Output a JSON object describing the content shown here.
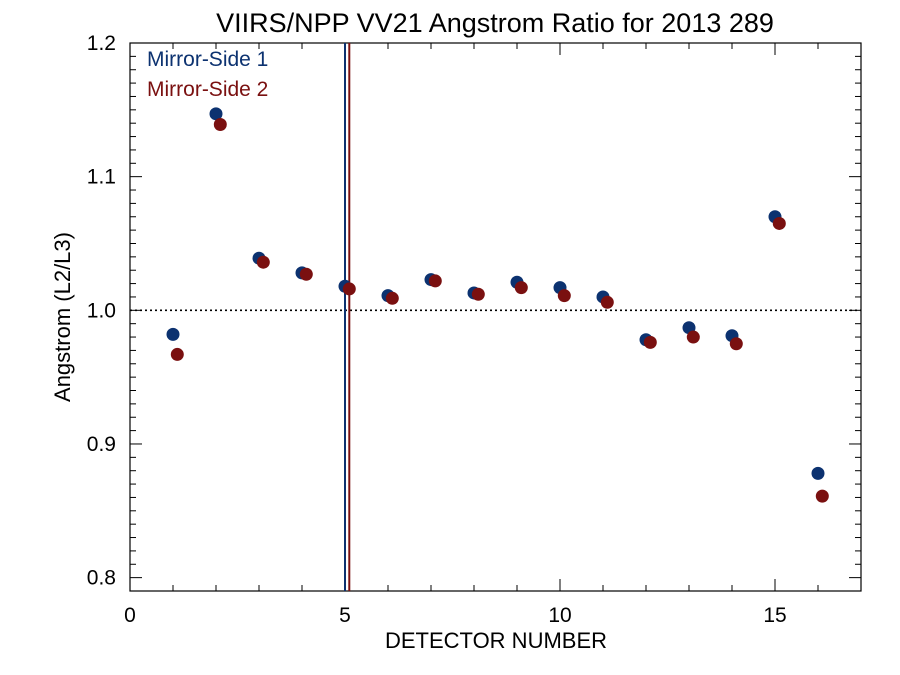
{
  "chart_data": {
    "type": "scatter",
    "title": "VIIRS/NPP VV21 Angstrom Ratio for 2013 289",
    "xlabel": "DETECTOR NUMBER",
    "ylabel": "Angstrom (L2/L3)",
    "xlim": [
      0,
      17
    ],
    "ylim": [
      0.79,
      1.2
    ],
    "xticks": [
      0,
      5,
      10,
      15
    ],
    "yticks": [
      0.8,
      0.9,
      1.0,
      1.1,
      1.2
    ],
    "xtick_labels": [
      "0",
      "5",
      "10",
      "15"
    ],
    "ytick_labels": [
      "0.8",
      "0.9",
      "1.0",
      "1.1",
      "1.2"
    ],
    "reference_line": {
      "y": 1.0,
      "style": "dotted"
    },
    "vertical_lines": [
      {
        "x": 5.0,
        "series": "Mirror-Side 1"
      },
      {
        "x": 5.1,
        "series": "Mirror-Side 2"
      }
    ],
    "legend": {
      "placement": "top-left"
    },
    "series": [
      {
        "name": "Mirror-Side 1",
        "color": "#0c3270",
        "x": [
          1,
          2,
          3,
          4,
          5,
          6,
          7,
          8,
          9,
          10,
          11,
          12,
          13,
          14,
          15,
          16
        ],
        "y": [
          0.982,
          1.147,
          1.039,
          1.028,
          1.018,
          1.011,
          1.023,
          1.013,
          1.021,
          1.017,
          1.01,
          0.978,
          0.987,
          0.981,
          1.07,
          0.878
        ]
      },
      {
        "name": "Mirror-Side 2",
        "color": "#7a1010",
        "x": [
          1.1,
          2.1,
          3.1,
          4.1,
          5.1,
          6.1,
          7.1,
          8.1,
          9.1,
          10.1,
          11.1,
          12.1,
          13.1,
          14.1,
          15.1,
          16.1
        ],
        "y": [
          0.967,
          1.139,
          1.036,
          1.027,
          1.016,
          1.009,
          1.022,
          1.012,
          1.017,
          1.011,
          1.006,
          0.976,
          0.98,
          0.975,
          1.065,
          0.861
        ]
      }
    ]
  }
}
